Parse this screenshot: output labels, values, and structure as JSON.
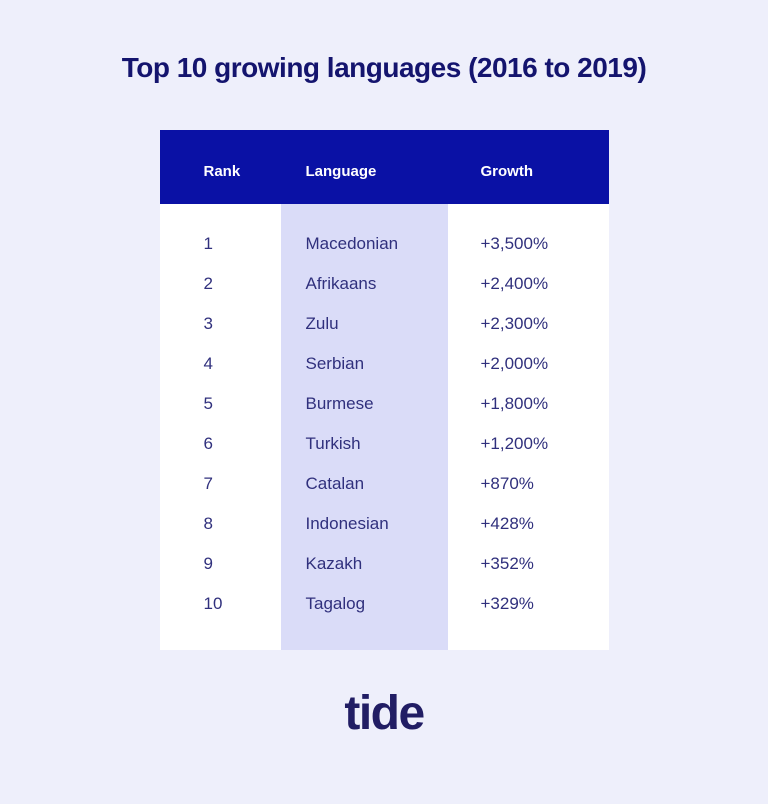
{
  "page": {
    "background_color": "#EEEFFB",
    "title": "Top 10 growing languages (2016 to 2019)",
    "title_color": "#14146E"
  },
  "table": {
    "header_bg_color": "#0A11A5",
    "header_text_color": "#FFFFFF",
    "language_column_bg_color": "#DADCF8",
    "body_text_color": "#30307D",
    "columns": [
      "Rank",
      "Language",
      "Growth"
    ],
    "rows": [
      {
        "rank": "1",
        "language": "Macedonian",
        "growth": "+3,500%"
      },
      {
        "rank": "2",
        "language": "Afrikaans",
        "growth": "+2,400%"
      },
      {
        "rank": "3",
        "language": "Zulu",
        "growth": "+2,300%"
      },
      {
        "rank": "4",
        "language": "Serbian",
        "growth": "+2,000%"
      },
      {
        "rank": "5",
        "language": "Burmese",
        "growth": "+1,800%"
      },
      {
        "rank": "6",
        "language": "Turkish",
        "growth": "+1,200%"
      },
      {
        "rank": "7",
        "language": "Catalan",
        "growth": "+870%"
      },
      {
        "rank": "8",
        "language": "Indonesian",
        "growth": "+428%"
      },
      {
        "rank": "9",
        "language": "Kazakh",
        "growth": "+352%"
      },
      {
        "rank": "10",
        "language": "Tagalog",
        "growth": "+329%"
      }
    ]
  },
  "chart_data": {
    "type": "table",
    "title": "Top 10 growing languages (2016 to 2019)",
    "columns": [
      "Rank",
      "Language",
      "Growth"
    ],
    "rows": [
      [
        1,
        "Macedonian",
        "+3,500%"
      ],
      [
        2,
        "Afrikaans",
        "+2,400%"
      ],
      [
        3,
        "Zulu",
        "+2,300%"
      ],
      [
        4,
        "Serbian",
        "+2,000%"
      ],
      [
        5,
        "Burmese",
        "+1,800%"
      ],
      [
        6,
        "Turkish",
        "+1,200%"
      ],
      [
        7,
        "Catalan",
        "+870%"
      ],
      [
        8,
        "Indonesian",
        "+428%"
      ],
      [
        9,
        "Kazakh",
        "+352%"
      ],
      [
        10,
        "Tagalog",
        "+329%"
      ]
    ],
    "growth_values_percent": [
      3500,
      2400,
      2300,
      2000,
      1800,
      1200,
      870,
      428,
      352,
      329
    ]
  },
  "footer": {
    "logo_text": "tide",
    "logo_color": "#211D64"
  }
}
